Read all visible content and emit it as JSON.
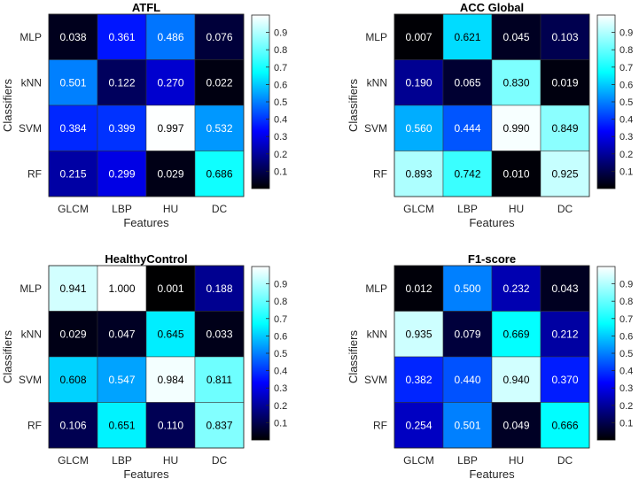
{
  "chart_data": [
    {
      "type": "heatmap",
      "title": "ATFL",
      "xlabel": "Features",
      "ylabel": "Classifiers",
      "x_categories": [
        "GLCM",
        "LBP",
        "HU",
        "DC"
      ],
      "y_categories": [
        "MLP",
        "kNN",
        "SVM",
        "RF"
      ],
      "values": [
        [
          0.038,
          0.361,
          0.486,
          0.076
        ],
        [
          0.501,
          0.122,
          0.27,
          0.022
        ],
        [
          0.384,
          0.399,
          0.997,
          0.532
        ],
        [
          0.215,
          0.299,
          0.029,
          0.686
        ]
      ],
      "value_labels": [
        [
          "0.038",
          "0.361",
          "0.486",
          "0.076"
        ],
        [
          "0.501",
          "0.122",
          "0.270",
          "0.022"
        ],
        [
          "0.384",
          "0.399",
          "0.997",
          "0.532"
        ],
        [
          "0.215",
          "0.299",
          "0.029",
          "0.686"
        ]
      ],
      "colorbar_ticks": [
        "0.1",
        "0.2",
        "0.3",
        "0.4",
        "0.5",
        "0.6",
        "0.7",
        "0.8",
        "0.9"
      ],
      "colormap": [
        "#000000",
        "#0000ff",
        "#00ffff",
        "#ffffff"
      ]
    },
    {
      "type": "heatmap",
      "title": "ACC Global",
      "xlabel": "Features",
      "ylabel": "Classifiers",
      "x_categories": [
        "GLCM",
        "LBP",
        "HU",
        "DC"
      ],
      "y_categories": [
        "MLP",
        "kNN",
        "SVM",
        "RF"
      ],
      "values": [
        [
          0.007,
          0.621,
          0.045,
          0.103
        ],
        [
          0.19,
          0.065,
          0.83,
          0.019
        ],
        [
          0.56,
          0.444,
          0.99,
          0.849
        ],
        [
          0.893,
          0.742,
          0.01,
          0.925
        ]
      ],
      "value_labels": [
        [
          "0.007",
          "0.621",
          "0.045",
          "0.103"
        ],
        [
          "0.190",
          "0.065",
          "0.830",
          "0.019"
        ],
        [
          "0.560",
          "0.444",
          "0.990",
          "0.849"
        ],
        [
          "0.893",
          "0.742",
          "0.010",
          "0.925"
        ]
      ],
      "colorbar_ticks": [
        "0.1",
        "0.2",
        "0.3",
        "0.4",
        "0.5",
        "0.6",
        "0.7",
        "0.8",
        "0.9"
      ],
      "colormap": [
        "#000000",
        "#0000ff",
        "#00ffff",
        "#ffffff"
      ]
    },
    {
      "type": "heatmap",
      "title": "HealthyControl",
      "xlabel": "Features",
      "ylabel": "Classifiers",
      "x_categories": [
        "GLCM",
        "LBP",
        "HU",
        "DC"
      ],
      "y_categories": [
        "MLP",
        "kNN",
        "SVM",
        "RF"
      ],
      "values": [
        [
          0.941,
          1.0,
          0.001,
          0.188
        ],
        [
          0.029,
          0.047,
          0.645,
          0.033
        ],
        [
          0.608,
          0.547,
          0.984,
          0.811
        ],
        [
          0.106,
          0.651,
          0.11,
          0.837
        ]
      ],
      "value_labels": [
        [
          "0.941",
          "1.000",
          "0.001",
          "0.188"
        ],
        [
          "0.029",
          "0.047",
          "0.645",
          "0.033"
        ],
        [
          "0.608",
          "0.547",
          "0.984",
          "0.811"
        ],
        [
          "0.106",
          "0.651",
          "0.110",
          "0.837"
        ]
      ],
      "colorbar_ticks": [
        "0.1",
        "0.2",
        "0.3",
        "0.4",
        "0.5",
        "0.6",
        "0.7",
        "0.8",
        "0.9"
      ],
      "colormap": [
        "#000000",
        "#0000ff",
        "#00ffff",
        "#ffffff"
      ]
    },
    {
      "type": "heatmap",
      "title": "F1-score",
      "xlabel": "Features",
      "ylabel": "Classifiers",
      "x_categories": [
        "GLCM",
        "LBP",
        "HU",
        "DC"
      ],
      "y_categories": [
        "MLP",
        "kNN",
        "SVM",
        "RF"
      ],
      "values": [
        [
          0.012,
          0.5,
          0.232,
          0.043
        ],
        [
          0.935,
          0.079,
          0.669,
          0.212
        ],
        [
          0.382,
          0.44,
          0.94,
          0.37
        ],
        [
          0.254,
          0.501,
          0.049,
          0.666
        ]
      ],
      "value_labels": [
        [
          "0.012",
          "0.500",
          "0.232",
          "0.043"
        ],
        [
          "0.935",
          "0.079",
          "0.669",
          "0.212"
        ],
        [
          "0.382",
          "0.440",
          "0.940",
          "0.370"
        ],
        [
          "0.254",
          "0.501",
          "0.049",
          "0.666"
        ]
      ],
      "colorbar_ticks": [
        "0.1",
        "0.2",
        "0.3",
        "0.4",
        "0.5",
        "0.6",
        "0.7",
        "0.8",
        "0.9"
      ],
      "colormap": [
        "#000000",
        "#0000ff",
        "#00ffff",
        "#ffffff"
      ]
    }
  ]
}
